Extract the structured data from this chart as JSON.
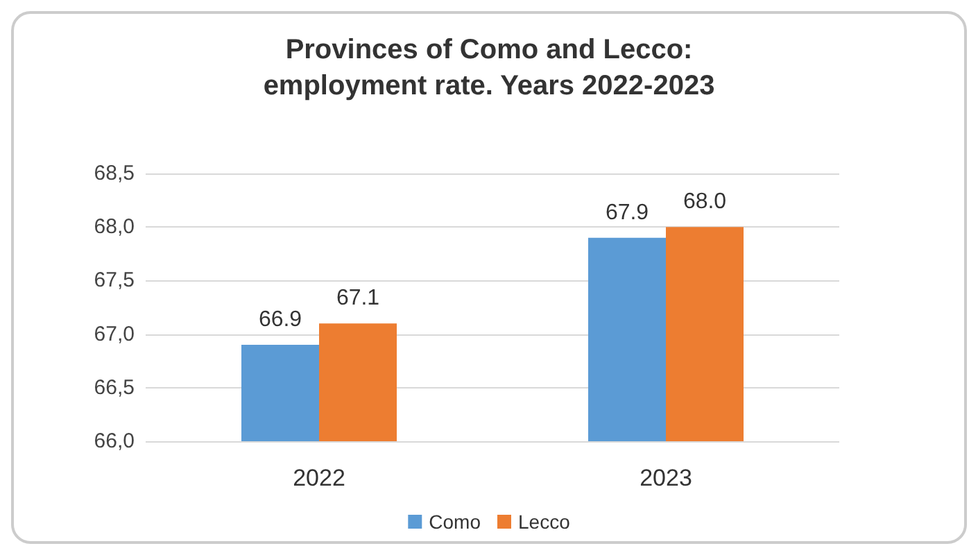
{
  "chart_data": {
    "type": "bar",
    "title": "Provinces of Como and Lecco:\nemployment rate. Years 2022-2023",
    "categories": [
      "2022",
      "2023"
    ],
    "series": [
      {
        "name": "Como",
        "color": "#5b9bd5",
        "values": [
          66.9,
          67.9
        ],
        "value_labels": [
          "66.9",
          "67.9"
        ]
      },
      {
        "name": "Lecco",
        "color": "#ed7d31",
        "values": [
          67.1,
          68.0
        ],
        "value_labels": [
          "67.1",
          "68.0"
        ]
      }
    ],
    "ylim": [
      66,
      68.5
    ],
    "yticks": [
      {
        "value": 66,
        "label": "66,0"
      },
      {
        "value": 66.5,
        "label": "66,5"
      },
      {
        "value": 67,
        "label": "67,0"
      },
      {
        "value": 67.5,
        "label": "67,5"
      },
      {
        "value": 68,
        "label": "68,0"
      },
      {
        "value": 68.5,
        "label": "68,5"
      }
    ],
    "grid": "y",
    "legend": "bottom"
  }
}
